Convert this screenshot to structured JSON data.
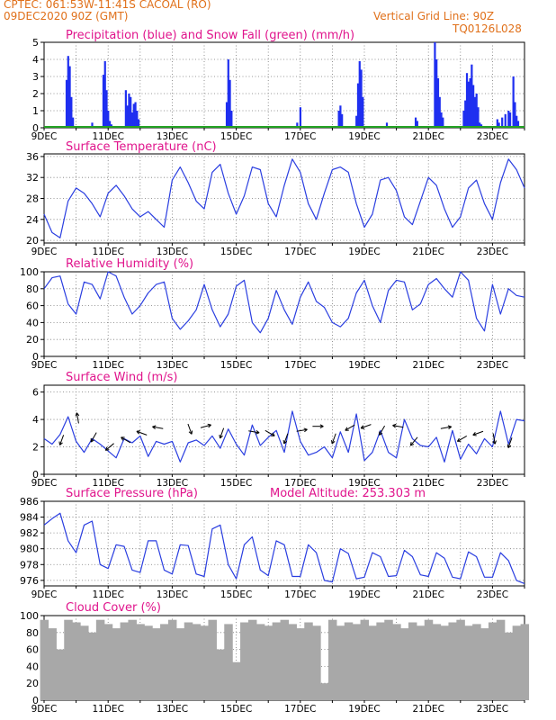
{
  "header": {
    "left_line1": "CPTEC:   061:53W-11:41S   CACOAL (RO)",
    "left_line2": "09DEC2020 90Z (GMT)",
    "right_line1": "Vertical Grid Line: 90Z",
    "right_line2": "TQ0126L028",
    "model_altitude": "Model Altitude: 253.303 m"
  },
  "colors": {
    "header": "#e0701a",
    "panel_title": "#e0148c",
    "line": "#2a3ee0",
    "bars": "#1f2ff0",
    "snow": "#22a022",
    "cloud": "#a8a8a8",
    "arrow": "#000000"
  },
  "x_axis": {
    "tick_labels": [
      "9DEC",
      "11DEC",
      "13DEC",
      "15DEC",
      "17DEC",
      "19DEC",
      "21DEC",
      "23DEC"
    ],
    "tick_days": [
      0,
      2,
      4,
      6,
      8,
      10,
      12,
      14
    ],
    "day_range": [
      0,
      15
    ]
  },
  "chart_data": [
    {
      "id": "precip",
      "type": "bar",
      "title": "Precipitation (blue) and Snow Fall (green) (mm/h)",
      "ylim": [
        0,
        5
      ],
      "yticks": [
        0,
        1,
        2,
        3,
        4,
        5
      ],
      "series": [
        {
          "name": "Precipitation",
          "x": [
            0.7,
            0.75,
            0.8,
            0.85,
            0.9,
            1.5,
            1.85,
            1.9,
            1.95,
            2.0,
            2.05,
            2.1,
            2.15,
            2.55,
            2.6,
            2.65,
            2.7,
            2.75,
            2.8,
            2.85,
            2.9,
            2.95,
            5.7,
            5.75,
            5.8,
            5.85,
            7.9,
            8.0,
            9.2,
            9.25,
            9.3,
            9.75,
            9.8,
            9.85,
            9.9,
            9.95,
            10.7,
            11.6,
            11.65,
            12.2,
            12.25,
            12.3,
            12.35,
            12.4,
            12.45,
            13.1,
            13.15,
            13.2,
            13.25,
            13.3,
            13.35,
            13.4,
            13.45,
            13.5,
            13.55,
            13.6,
            13.65,
            14.15,
            14.2,
            14.3,
            14.4,
            14.5,
            14.55,
            14.65,
            14.7,
            14.75,
            14.8
          ],
          "values": [
            2.8,
            4.2,
            3.6,
            1.8,
            0.6,
            0.3,
            3.1,
            3.9,
            2.2,
            1.0,
            0.4,
            0.2,
            0.1,
            2.2,
            1.3,
            2.0,
            1.8,
            0.9,
            1.4,
            1.5,
            1.0,
            0.5,
            1.5,
            4.0,
            2.8,
            1.0,
            0.3,
            1.2,
            1.0,
            1.3,
            0.8,
            0.7,
            2.6,
            3.9,
            3.4,
            1.8,
            0.3,
            0.6,
            0.4,
            5.0,
            4.0,
            2.9,
            1.8,
            0.9,
            0.6,
            1.0,
            1.6,
            3.2,
            2.7,
            2.9,
            3.7,
            2.5,
            1.8,
            2.0,
            1.2,
            0.3,
            0.2,
            0.5,
            0.3,
            0.6,
            0.8,
            1.0,
            0.9,
            3.0,
            1.5,
            0.7,
            0.4
          ]
        },
        {
          "name": "Snow Fall",
          "values": [
            0
          ]
        }
      ]
    },
    {
      "id": "temp",
      "type": "line",
      "title": "Surface Temperature (nC)",
      "ylim": [
        19.5,
        36.5
      ],
      "yticks": [
        20,
        24,
        28,
        32,
        36
      ],
      "x": [
        0.0,
        0.25,
        0.5,
        0.75,
        1.0,
        1.25,
        1.5,
        1.75,
        2.0,
        2.25,
        2.5,
        2.75,
        3.0,
        3.25,
        3.5,
        3.75,
        4.0,
        4.25,
        4.5,
        4.75,
        5.0,
        5.25,
        5.5,
        5.75,
        6.0,
        6.25,
        6.5,
        6.75,
        7.0,
        7.25,
        7.5,
        7.75,
        8.0,
        8.25,
        8.5,
        8.75,
        9.0,
        9.25,
        9.5,
        9.75,
        10.0,
        10.25,
        10.5,
        10.75,
        11.0,
        11.25,
        11.5,
        11.75,
        12.0,
        12.25,
        12.5,
        12.75,
        13.0,
        13.25,
        13.5,
        13.75,
        14.0,
        14.25,
        14.5,
        14.75,
        15.0
      ],
      "values": [
        25.0,
        21.5,
        20.5,
        27.5,
        30.0,
        29.0,
        27.0,
        24.5,
        29.0,
        30.5,
        28.5,
        26.0,
        24.5,
        25.5,
        24.0,
        22.5,
        31.5,
        34.0,
        31.0,
        27.5,
        26.0,
        33.0,
        34.5,
        29.0,
        25.0,
        28.5,
        34.0,
        33.5,
        27.0,
        24.5,
        30.5,
        35.5,
        33.0,
        27.0,
        24.0,
        29.0,
        33.5,
        34.0,
        33.0,
        27.0,
        22.5,
        25.0,
        31.5,
        32.0,
        29.5,
        24.5,
        23.0,
        27.5,
        32.0,
        30.5,
        26.0,
        22.5,
        24.5,
        30.0,
        31.5,
        27.0,
        24.0,
        31.0,
        35.5,
        33.5,
        30.0
      ]
    },
    {
      "id": "rh",
      "type": "line",
      "title": "Relative Humidity (%)",
      "ylim": [
        0,
        100
      ],
      "yticks": [
        0,
        20,
        40,
        60,
        80,
        100
      ],
      "x": [
        0.0,
        0.25,
        0.5,
        0.75,
        1.0,
        1.25,
        1.5,
        1.75,
        2.0,
        2.25,
        2.5,
        2.75,
        3.0,
        3.25,
        3.5,
        3.75,
        4.0,
        4.25,
        4.5,
        4.75,
        5.0,
        5.25,
        5.5,
        5.75,
        6.0,
        6.25,
        6.5,
        6.75,
        7.0,
        7.25,
        7.5,
        7.75,
        8.0,
        8.25,
        8.5,
        8.75,
        9.0,
        9.25,
        9.5,
        9.75,
        10.0,
        10.25,
        10.5,
        10.75,
        11.0,
        11.25,
        11.5,
        11.75,
        12.0,
        12.25,
        12.5,
        12.75,
        13.0,
        13.25,
        13.5,
        13.75,
        14.0,
        14.25,
        14.5,
        14.75,
        15.0
      ],
      "values": [
        80,
        93,
        95,
        62,
        50,
        88,
        85,
        68,
        100,
        95,
        70,
        50,
        60,
        75,
        85,
        88,
        45,
        32,
        42,
        55,
        85,
        55,
        35,
        50,
        83,
        90,
        40,
        28,
        45,
        78,
        55,
        38,
        70,
        88,
        65,
        58,
        40,
        35,
        45,
        75,
        90,
        60,
        40,
        78,
        90,
        88,
        55,
        62,
        85,
        92,
        80,
        70,
        100,
        90,
        45,
        30,
        85,
        50,
        80,
        72,
        70
      ]
    },
    {
      "id": "wind",
      "type": "line",
      "title": "Surface Wind (m/s)",
      "ylim": [
        0,
        6.5
      ],
      "yticks": [
        0,
        2,
        4,
        6
      ],
      "x": [
        0.0,
        0.25,
        0.5,
        0.75,
        1.0,
        1.25,
        1.5,
        1.75,
        2.0,
        2.25,
        2.5,
        2.75,
        3.0,
        3.25,
        3.5,
        3.75,
        4.0,
        4.25,
        4.5,
        4.75,
        5.0,
        5.25,
        5.5,
        5.75,
        6.0,
        6.25,
        6.5,
        6.75,
        7.0,
        7.25,
        7.5,
        7.75,
        8.0,
        8.25,
        8.5,
        8.75,
        9.0,
        9.25,
        9.5,
        9.75,
        10.0,
        10.25,
        10.5,
        10.75,
        11.0,
        11.25,
        11.5,
        11.75,
        12.0,
        12.25,
        12.5,
        12.75,
        13.0,
        13.25,
        13.5,
        13.75,
        14.0,
        14.25,
        14.5,
        14.75,
        15.0
      ],
      "values": [
        2.6,
        2.2,
        2.9,
        4.2,
        2.4,
        1.6,
        2.6,
        2.2,
        1.7,
        1.2,
        2.6,
        2.3,
        2.8,
        1.3,
        2.4,
        2.2,
        2.4,
        0.9,
        2.3,
        2.5,
        2.1,
        2.8,
        1.9,
        3.3,
        2.2,
        1.4,
        3.6,
        2.1,
        2.7,
        3.2,
        1.6,
        4.6,
        2.4,
        1.4,
        1.6,
        2.0,
        1.2,
        3.1,
        1.6,
        4.4,
        1.0,
        1.6,
        3.2,
        1.6,
        1.2,
        4.0,
        2.6,
        2.1,
        2.0,
        2.7,
        0.9,
        3.2,
        1.1,
        2.2,
        1.5,
        2.6,
        2.0,
        4.6,
        2.2,
        4.0,
        3.9
      ],
      "arrows": [
        {
          "day": 0.55,
          "speed": 2.5,
          "dir_deg": 250
        },
        {
          "day": 1.05,
          "speed": 4.1,
          "dir_deg": 100
        },
        {
          "day": 1.55,
          "speed": 2.7,
          "dir_deg": 240
        },
        {
          "day": 2.05,
          "speed": 2.0,
          "dir_deg": 220
        },
        {
          "day": 2.55,
          "speed": 2.5,
          "dir_deg": 150
        },
        {
          "day": 3.05,
          "speed": 3.0,
          "dir_deg": 160
        },
        {
          "day": 3.55,
          "speed": 3.4,
          "dir_deg": 170
        },
        {
          "day": 4.55,
          "speed": 3.3,
          "dir_deg": 290
        },
        {
          "day": 5.05,
          "speed": 3.5,
          "dir_deg": 15
        },
        {
          "day": 5.55,
          "speed": 3.0,
          "dir_deg": 250
        },
        {
          "day": 6.55,
          "speed": 3.1,
          "dir_deg": 350
        },
        {
          "day": 7.05,
          "speed": 3.0,
          "dir_deg": 330
        },
        {
          "day": 7.55,
          "speed": 2.6,
          "dir_deg": 250
        },
        {
          "day": 8.05,
          "speed": 3.2,
          "dir_deg": 10
        },
        {
          "day": 8.55,
          "speed": 3.5,
          "dir_deg": 0
        },
        {
          "day": 9.05,
          "speed": 2.6,
          "dir_deg": 250
        },
        {
          "day": 9.55,
          "speed": 3.4,
          "dir_deg": 210
        },
        {
          "day": 10.05,
          "speed": 3.5,
          "dir_deg": 200
        },
        {
          "day": 10.55,
          "speed": 3.2,
          "dir_deg": 240
        },
        {
          "day": 11.05,
          "speed": 3.5,
          "dir_deg": 170
        },
        {
          "day": 11.55,
          "speed": 2.4,
          "dir_deg": 230
        },
        {
          "day": 12.55,
          "speed": 3.4,
          "dir_deg": 10
        },
        {
          "day": 13.05,
          "speed": 2.6,
          "dir_deg": 210
        },
        {
          "day": 13.55,
          "speed": 3.0,
          "dir_deg": 200
        },
        {
          "day": 14.05,
          "speed": 2.6,
          "dir_deg": 280
        },
        {
          "day": 14.55,
          "speed": 2.3,
          "dir_deg": 250
        }
      ]
    },
    {
      "id": "pres",
      "type": "line",
      "title": "Surface Pressure (hPa)",
      "ylim": [
        975.3,
        986
      ],
      "yticks": [
        976,
        978,
        980,
        982,
        984,
        986
      ],
      "x": [
        0.0,
        0.25,
        0.5,
        0.75,
        1.0,
        1.25,
        1.5,
        1.75,
        2.0,
        2.25,
        2.5,
        2.75,
        3.0,
        3.25,
        3.5,
        3.75,
        4.0,
        4.25,
        4.5,
        4.75,
        5.0,
        5.25,
        5.5,
        5.75,
        6.0,
        6.25,
        6.5,
        6.75,
        7.0,
        7.25,
        7.5,
        7.75,
        8.0,
        8.25,
        8.5,
        8.75,
        9.0,
        9.25,
        9.5,
        9.75,
        10.0,
        10.25,
        10.5,
        10.75,
        11.0,
        11.25,
        11.5,
        11.75,
        12.0,
        12.25,
        12.5,
        12.75,
        13.0,
        13.25,
        13.5,
        13.75,
        14.0,
        14.25,
        14.5,
        14.75,
        15.0
      ],
      "values": [
        983.0,
        983.8,
        984.5,
        981.0,
        979.5,
        983.0,
        983.5,
        978.0,
        977.5,
        980.5,
        980.3,
        977.3,
        977.0,
        981.0,
        981.0,
        977.3,
        976.8,
        980.5,
        980.4,
        976.8,
        976.5,
        982.5,
        983.0,
        978.0,
        976.2,
        980.5,
        981.5,
        977.3,
        976.6,
        981.0,
        980.5,
        976.5,
        976.5,
        980.5,
        979.5,
        976.0,
        975.8,
        980.0,
        979.4,
        976.2,
        976.4,
        979.5,
        979.0,
        976.5,
        976.6,
        979.8,
        979.0,
        976.7,
        976.5,
        979.5,
        978.8,
        976.4,
        976.2,
        979.6,
        979.0,
        976.4,
        976.4,
        979.5,
        978.5,
        976.0,
        975.6
      ]
    },
    {
      "id": "cloud",
      "type": "area",
      "title": "Cloud Cover (%)",
      "ylim": [
        0,
        100
      ],
      "yticks": [
        0,
        20,
        40,
        60,
        80,
        100
      ],
      "x": [
        0.0,
        0.25,
        0.5,
        0.75,
        1.0,
        1.25,
        1.5,
        1.75,
        2.0,
        2.25,
        2.5,
        2.75,
        3.0,
        3.25,
        3.5,
        3.75,
        4.0,
        4.25,
        4.5,
        4.75,
        5.0,
        5.25,
        5.5,
        5.75,
        6.0,
        6.25,
        6.5,
        6.75,
        7.0,
        7.25,
        7.5,
        7.75,
        8.0,
        8.25,
        8.5,
        8.75,
        9.0,
        9.25,
        9.5,
        9.75,
        10.0,
        10.25,
        10.5,
        10.75,
        11.0,
        11.25,
        11.5,
        11.75,
        12.0,
        12.25,
        12.5,
        12.75,
        13.0,
        13.25,
        13.5,
        13.75,
        14.0,
        14.25,
        14.5,
        14.75,
        15.0
      ],
      "values": [
        95,
        85,
        60,
        95,
        92,
        88,
        80,
        95,
        90,
        85,
        92,
        95,
        90,
        88,
        85,
        90,
        95,
        85,
        92,
        90,
        88,
        95,
        60,
        90,
        45,
        92,
        95,
        90,
        88,
        92,
        95,
        90,
        85,
        92,
        88,
        20,
        95,
        88,
        92,
        90,
        95,
        88,
        92,
        95,
        90,
        85,
        92,
        88,
        95,
        90,
        88,
        92,
        95,
        88,
        90,
        85,
        92,
        95,
        80,
        88,
        90
      ]
    }
  ]
}
